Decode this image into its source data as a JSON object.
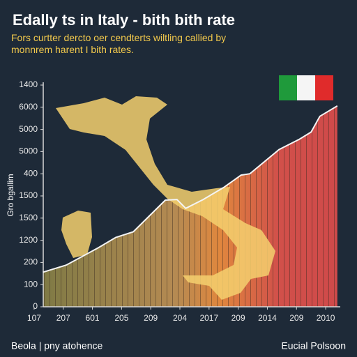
{
  "chart_data": {
    "type": "area",
    "title": "Edally ts in Italy - bith bith rate",
    "subtitle": "Fors curtter dercto oer cendterts wiltling callied by monnrem harent I bith rates.",
    "y_label": "Gro bgallim",
    "footer_left": "Beola | pny atohence",
    "footer_right": "Eucial Polsoon",
    "xlim": [
      -0.5,
      10.5
    ],
    "xticks": [
      {
        "value": 0,
        "label": "107"
      },
      {
        "value": 1,
        "label": "207"
      },
      {
        "value": 2,
        "label": "601"
      },
      {
        "value": 3,
        "label": "205"
      },
      {
        "value": 4,
        "label": "209"
      },
      {
        "value": 5,
        "label": "204"
      },
      {
        "value": 6,
        "label": "2017"
      },
      {
        "value": 7,
        "label": "209"
      },
      {
        "value": 8,
        "label": "2014"
      },
      {
        "value": 9,
        "label": "209"
      },
      {
        "value": 10,
        "label": "2010"
      }
    ],
    "ylim": [
      0,
      10
    ],
    "yticks": [
      {
        "value": 0,
        "label": "0"
      },
      {
        "value": 1,
        "label": "100"
      },
      {
        "value": 2,
        "label": "200"
      },
      {
        "value": 3,
        "label": "1200"
      },
      {
        "value": 4,
        "label": "1500"
      },
      {
        "value": 5,
        "label": "1500"
      },
      {
        "value": 6,
        "label": "400"
      },
      {
        "value": 7,
        "label": "5000"
      },
      {
        "value": 8,
        "label": "5000"
      },
      {
        "value": 9,
        "label": "6000"
      },
      {
        "value": 10,
        "label": "1400"
      }
    ],
    "x": [
      0.3,
      1.1,
      2.2,
      2.8,
      3.4,
      4.5,
      4.9,
      5.2,
      5.8,
      6.5,
      7.1,
      7.4,
      8.4,
      9.1,
      9.5,
      9.8,
      10.4
    ],
    "values": [
      1.56,
      1.88,
      2.66,
      3.13,
      3.38,
      4.81,
      4.84,
      4.44,
      4.84,
      5.38,
      5.94,
      6.0,
      7.09,
      7.56,
      7.88,
      8.59,
      9.06
    ],
    "color": "#f4f4f4"
  }
}
